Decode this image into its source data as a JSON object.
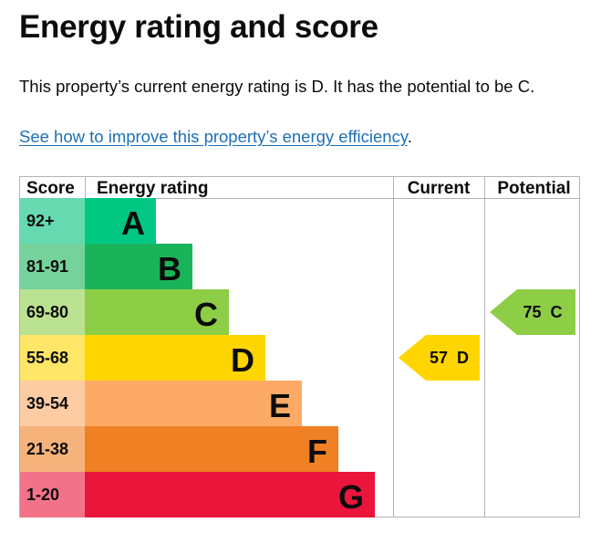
{
  "heading": "Energy rating and score",
  "summary": "This property’s current energy rating is D. It has the potential to be C.",
  "improve_link": {
    "text": "See how to improve this property’s energy efficiency",
    "suffix": "."
  },
  "chart_data": {
    "type": "table",
    "columns": [
      "Score",
      "Energy rating",
      "Current",
      "Potential"
    ],
    "bands": [
      {
        "rating": "A",
        "score_range": "92+",
        "color": "#00c781",
        "score_bg": "#66d9b0"
      },
      {
        "rating": "B",
        "score_range": "81-91",
        "color": "#19b459",
        "score_bg": "#75d29b"
      },
      {
        "rating": "C",
        "score_range": "69-80",
        "color": "#8dce46",
        "score_bg": "#bbe290"
      },
      {
        "rating": "D",
        "score_range": "55-68",
        "color": "#ffd500",
        "score_bg": "#ffe666"
      },
      {
        "rating": "E",
        "score_range": "39-54",
        "color": "#fcaa65",
        "score_bg": "#fdcca3"
      },
      {
        "rating": "F",
        "score_range": "21-38",
        "color": "#ef8023",
        "score_bg": "#f5b37b"
      },
      {
        "rating": "G",
        "score_range": "1-20",
        "color": "#e9153b",
        "score_bg": "#f27389"
      }
    ],
    "current": {
      "score": 57,
      "rating": "D",
      "label": "57  D"
    },
    "potential": {
      "score": 75,
      "rating": "C",
      "label": "75  C"
    }
  }
}
